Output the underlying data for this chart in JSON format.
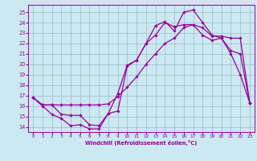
{
  "xlabel": "Windchill (Refroidissement éolien,°C)",
  "line_color": "#990099",
  "bg_color": "#cce8f0",
  "grid_color": "#99bbcc",
  "xlim": [
    -0.5,
    23.5
  ],
  "ylim": [
    13.5,
    25.7
  ],
  "xticks": [
    0,
    1,
    2,
    3,
    4,
    5,
    6,
    7,
    8,
    9,
    10,
    11,
    12,
    13,
    14,
    15,
    16,
    17,
    18,
    19,
    20,
    21,
    22,
    23
  ],
  "yticks": [
    14,
    15,
    16,
    17,
    18,
    19,
    20,
    21,
    22,
    23,
    24,
    25
  ],
  "curve1_x": [
    0,
    1,
    2,
    3,
    4,
    5,
    6,
    7,
    8,
    9,
    10,
    11,
    12,
    13,
    14,
    15,
    16,
    17,
    18,
    19,
    20,
    21,
    22,
    23
  ],
  "curve1_y": [
    16.8,
    16.0,
    15.2,
    14.8,
    14.1,
    14.2,
    13.8,
    13.8,
    15.3,
    15.5,
    19.8,
    20.4,
    22.0,
    23.7,
    24.1,
    23.2,
    25.0,
    25.2,
    24.0,
    22.8,
    22.5,
    21.0,
    19.0,
    16.3
  ],
  "curve2_x": [
    0,
    1,
    2,
    3,
    4,
    5,
    6,
    7,
    8,
    9,
    10,
    11,
    12,
    13,
    14,
    15,
    16,
    17,
    18,
    19,
    20,
    21,
    22,
    23
  ],
  "curve2_y": [
    16.8,
    16.1,
    16.1,
    16.1,
    16.1,
    16.1,
    16.1,
    16.1,
    16.2,
    16.9,
    17.8,
    18.8,
    20.0,
    21.0,
    22.0,
    22.5,
    23.5,
    23.8,
    23.5,
    22.7,
    22.7,
    22.5,
    22.5,
    16.3
  ],
  "curve3_x": [
    0,
    1,
    2,
    3,
    4,
    5,
    6,
    7,
    8,
    9,
    10,
    11,
    12,
    13,
    14,
    15,
    16,
    17,
    18,
    19,
    20,
    21,
    22,
    23
  ],
  "curve3_y": [
    16.8,
    16.1,
    16.1,
    15.2,
    15.1,
    15.1,
    14.2,
    14.1,
    15.3,
    17.2,
    19.9,
    20.4,
    22.0,
    22.8,
    24.0,
    23.6,
    23.8,
    23.8,
    22.8,
    22.3,
    22.5,
    21.3,
    21.0,
    16.3
  ]
}
